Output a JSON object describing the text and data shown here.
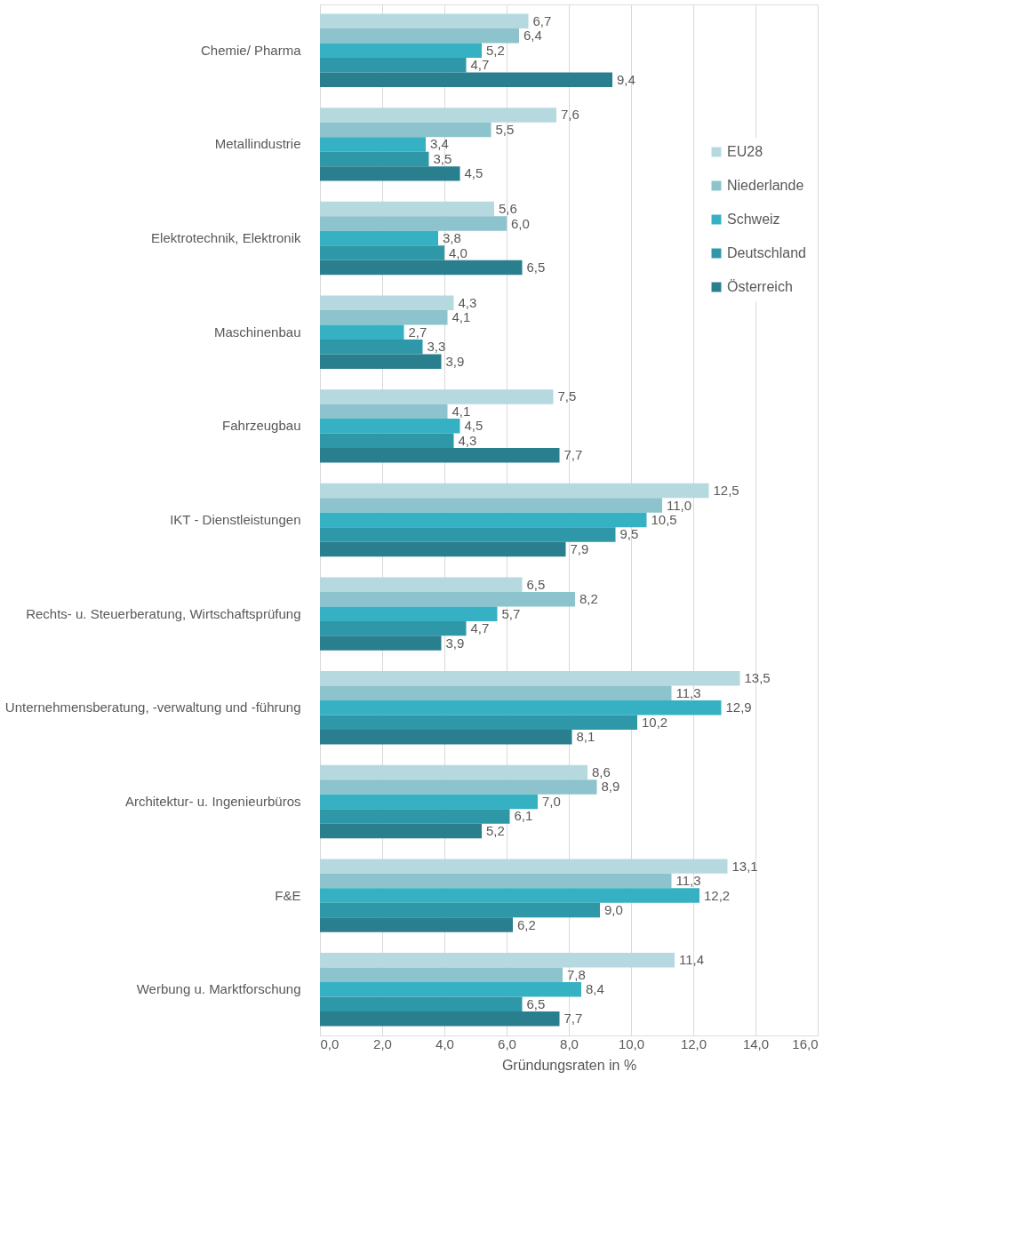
{
  "chart_data": {
    "type": "bar",
    "orientation": "horizontal",
    "xlabel": "Gründungsraten in %",
    "categories": [
      "Chemie/ Pharma",
      "Metallindustrie",
      "Elektrotechnik, Elektronik",
      "Maschinenbau",
      "Fahrzeugbau",
      "IKT - Dienstleistungen",
      "Rechts- u. Steuerberatung, Wirtschaftsprüfung",
      "Unternehmensberatung, -verwaltung und -führung",
      "Architektur- u. Ingenieurbüros",
      "F&E",
      "Werbung u. Marktforschung"
    ],
    "series": [
      {
        "name": "EU28",
        "color": "#b5d9df",
        "values": [
          6.7,
          7.6,
          5.6,
          4.3,
          7.5,
          12.5,
          6.5,
          13.5,
          8.6,
          13.1,
          11.4
        ],
        "value_labels": [
          "6,7",
          "7,6",
          "5,6",
          "4,3",
          "7,5",
          "12,5",
          "6,5",
          "13,5",
          "8,6",
          "13,1",
          "11,4"
        ]
      },
      {
        "name": "Niederlande",
        "color": "#8cc3cc",
        "values": [
          6.4,
          5.5,
          6.0,
          4.1,
          4.1,
          11.0,
          8.2,
          11.3,
          8.9,
          11.3,
          7.8
        ],
        "value_labels": [
          "6,4",
          "5,5",
          "6,0",
          "4,1",
          "4,1",
          "11,0",
          "8,2",
          "11,3",
          "8,9",
          "11,3",
          "7,8"
        ]
      },
      {
        "name": "Schweiz",
        "color": "#36b1c4",
        "values": [
          5.2,
          3.4,
          3.8,
          2.7,
          4.5,
          10.5,
          5.7,
          12.9,
          7.0,
          12.2,
          8.4
        ],
        "value_labels": [
          "5,2",
          "3,4",
          "3,8",
          "2,7",
          "4,5",
          "10,5",
          "5,7",
          "12,9",
          "7,0",
          "12,2",
          "8,4"
        ]
      },
      {
        "name": "Deutschland",
        "color": "#2f98a8",
        "values": [
          4.7,
          3.5,
          4.0,
          3.3,
          4.3,
          9.5,
          4.7,
          10.2,
          6.1,
          9.0,
          6.5
        ],
        "value_labels": [
          "4,7",
          "3,5",
          "4,0",
          "3,3",
          "4,3",
          "9,5",
          "4,7",
          "10,2",
          "6,1",
          "9,0",
          "6,5"
        ]
      },
      {
        "name": "Österreich",
        "color": "#2a7f8f",
        "values": [
          9.4,
          4.5,
          6.5,
          3.9,
          7.7,
          7.9,
          3.9,
          8.1,
          5.2,
          6.2,
          7.7
        ],
        "value_labels": [
          "9,4",
          "4,5",
          "6,5",
          "3,9",
          "7,7",
          "7,9",
          "3,9",
          "8,1",
          "5,2",
          "6,2",
          "7,7"
        ]
      }
    ],
    "xlim": [
      0,
      16
    ],
    "xticks": [
      {
        "value": 0,
        "label": "0,0"
      },
      {
        "value": 2,
        "label": "2,0"
      },
      {
        "value": 4,
        "label": "4,0"
      },
      {
        "value": 6,
        "label": "6,0"
      },
      {
        "value": 8,
        "label": "8,0"
      },
      {
        "value": 10,
        "label": "10,0"
      },
      {
        "value": 12,
        "label": "12,0"
      },
      {
        "value": 14,
        "label": "14,0"
      },
      {
        "value": 16,
        "label": "16,0"
      }
    ],
    "grid": "x",
    "legend": "right"
  }
}
